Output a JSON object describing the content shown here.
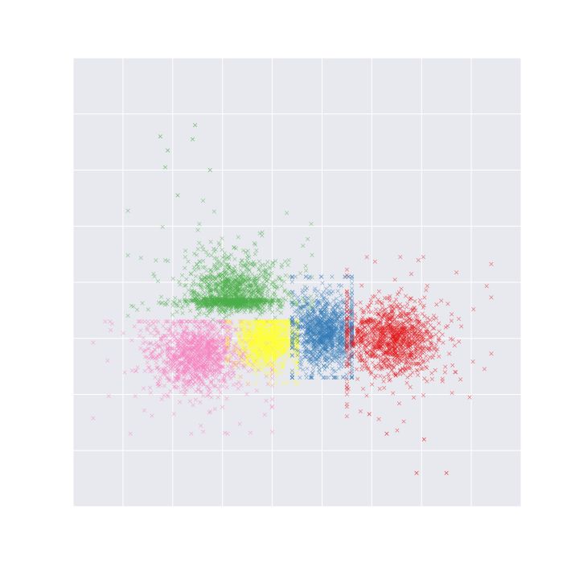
{
  "chart_data": {
    "type": "scatter",
    "title": "",
    "xlabel": "",
    "ylabel": "",
    "xlim": [
      0,
      9
    ],
    "ylim": [
      0,
      8
    ],
    "grid": true,
    "tick_labels_shown": false,
    "legend": null,
    "marker": "x",
    "colors": {
      "background": "#e8e8ef",
      "grid": "#ffffff",
      "series": [
        "#4daf4a",
        "#f781bf",
        "#ffff33",
        "#377eb8",
        "#e41a1c"
      ]
    },
    "series": [
      {
        "color": "#4daf4a",
        "x_range": [
          1.1,
          4.8
        ],
        "y_range": [
          3.15,
          6.9
        ],
        "center": [
          3.2,
          3.7
        ],
        "outliers": [
          [
            1.75,
            6.6
          ],
          [
            2.45,
            6.8
          ],
          [
            2.4,
            6.55
          ],
          [
            1.9,
            6.35
          ],
          [
            1.85,
            6.05
          ],
          [
            2.75,
            6.0
          ],
          [
            2.1,
            5.55
          ]
        ]
      },
      {
        "color": "#f781bf",
        "x_range": [
          0.4,
          4.0
        ],
        "y_range": [
          1.3,
          3.3
        ],
        "center": [
          2.5,
          2.7
        ]
      },
      {
        "color": "#ffff33",
        "x_range": [
          3.1,
          4.5
        ],
        "y_range": [
          2.2,
          3.3
        ],
        "center": [
          3.9,
          2.95
        ]
      },
      {
        "color": "#377eb8",
        "x_range": [
          4.4,
          5.6
        ],
        "y_range": [
          2.3,
          4.1
        ],
        "center": [
          5.05,
          3.1
        ]
      },
      {
        "color": "#e41a1c",
        "x_range": [
          5.5,
          8.4
        ],
        "y_range": [
          0.6,
          4.45
        ],
        "center": [
          6.4,
          3.0
        ],
        "outliers": [
          [
            6.3,
            1.3
          ],
          [
            7.5,
            0.6
          ],
          [
            6.9,
            0.6
          ],
          [
            5.95,
            1.65
          ],
          [
            7.05,
            1.2
          ]
        ]
      }
    ]
  }
}
